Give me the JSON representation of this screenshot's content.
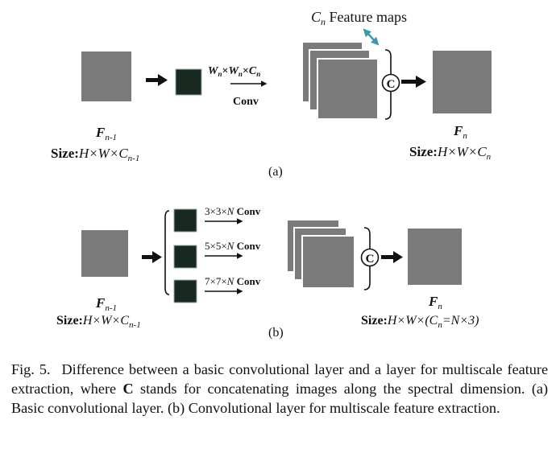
{
  "colors": {
    "map_fill": "#7a7a7a",
    "map_stroke": "#ffffff",
    "kernel_fill": "#18291f",
    "teal_arrow": "#3a9aa6",
    "ink": "#111111"
  },
  "panel_a": {
    "label": "(a)",
    "input_name": "F",
    "input_sub": "n-1",
    "input_size_prefix": "Size:",
    "input_size_dims": "H×W×C",
    "input_size_sub": "n-1",
    "kernel_w1": "W",
    "kernel_w1_sub": "n",
    "kernel_x1": "×",
    "kernel_w2": "W",
    "kernel_w2_sub": "n",
    "kernel_x2": "×",
    "kernel_c": "C",
    "kernel_c_sub": "n",
    "conv_label": "Conv",
    "feature_maps_c": "C",
    "feature_maps_sub": "n",
    "feature_maps_text": " Feature maps",
    "concat_symbol": "C",
    "output_name": "F",
    "output_sub": "n",
    "output_size_prefix": "Size:",
    "output_size_dims": "H×W×C",
    "output_size_sub": "n"
  },
  "panel_b": {
    "label": "(b)",
    "input_name": "F",
    "input_sub": "n-1",
    "input_size_prefix": "Size:",
    "input_size_dims": "H×W×C",
    "input_size_sub": "n-1",
    "branches": [
      {
        "kernel": "3×3×",
        "n": "N",
        "conv": " Conv"
      },
      {
        "kernel": "5×5×",
        "n": "N",
        "conv": " Conv"
      },
      {
        "kernel": "7×7×",
        "n": "N",
        "conv": " Conv"
      }
    ],
    "concat_symbol": "C",
    "output_name": "F",
    "output_sub": "n",
    "output_size_prefix": "Size:",
    "output_size_dims": "H×W×(C",
    "output_size_sub": "n",
    "output_size_tail": "=N×3)"
  },
  "caption": {
    "fig_num": "Fig. 5.",
    "text_1": "Difference between a basic convolutional layer and a layer for multiscale feature extraction, where ",
    "bold_c": "C",
    "text_2": " stands for concatenating images along the spectral dimension. (a) Basic convolutional layer. (b) Convolutional layer for multiscale feature extraction."
  }
}
